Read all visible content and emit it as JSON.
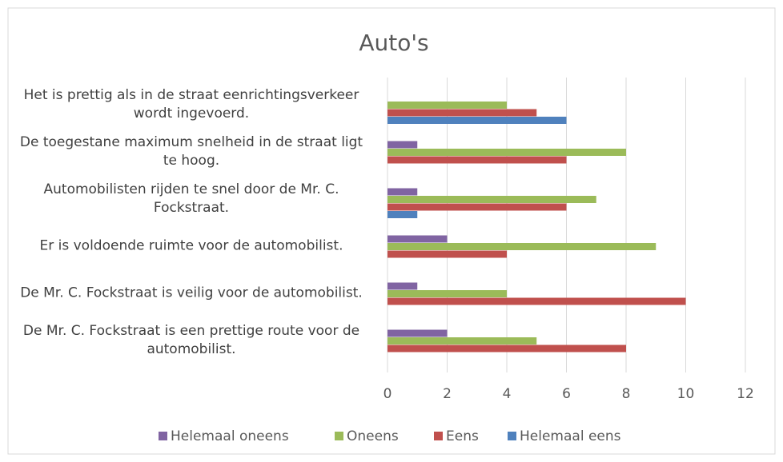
{
  "chart_data": {
    "type": "barh",
    "title": "Auto's",
    "categories": [
      "Het is prettig als in de straat eenrichtingsverkeer wordt ingevoerd.",
      "De toegestane maximum snelheid in de straat ligt te hoog.",
      "Automobilisten rijden te snel door de Mr. C. Fockstraat.",
      "Er is voldoende ruimte voor de automobilist.",
      "De Mr. C. Fockstraat is veilig voor de automobilist.",
      "De Mr. C. Fockstraat is een prettige route voor de automobilist."
    ],
    "series": [
      {
        "name": "Helemaal oneens",
        "color": "#8064a2",
        "values": [
          0,
          1,
          1,
          2,
          1,
          2
        ]
      },
      {
        "name": "Oneens",
        "color": "#9bbb59",
        "values": [
          4,
          8,
          7,
          9,
          4,
          5
        ]
      },
      {
        "name": "Eens",
        "color": "#c0504d",
        "values": [
          5,
          6,
          6,
          4,
          10,
          8
        ]
      },
      {
        "name": "Helemaal eens",
        "color": "#4f81bd",
        "values": [
          6,
          0,
          1,
          0,
          0,
          0
        ]
      }
    ],
    "xlim": [
      0,
      12
    ],
    "xticks": [
      0,
      2,
      4,
      6,
      8,
      10,
      12
    ],
    "grid": true,
    "legend": "bottom"
  }
}
